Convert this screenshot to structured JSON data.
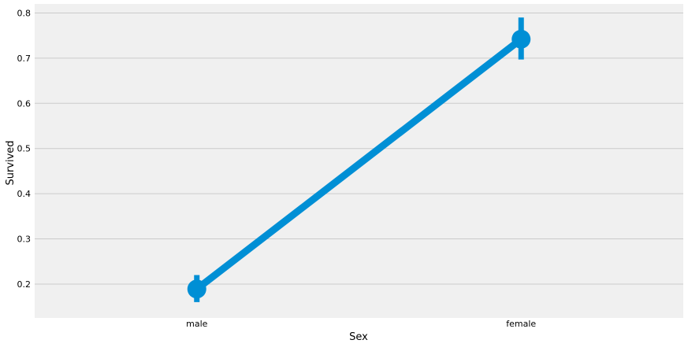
{
  "chart_data": {
    "type": "line",
    "title": "",
    "xlabel": "Sex",
    "ylabel": "Survived",
    "categories": [
      "male",
      "female"
    ],
    "series": [
      {
        "name": "",
        "values": [
          0.189,
          0.742
        ],
        "ci_low": [
          0.16,
          0.697
        ],
        "ci_high": [
          0.22,
          0.79
        ]
      }
    ],
    "ylim": [
      0.125,
      0.82
    ],
    "yticks": [
      0.2,
      0.3,
      0.4,
      0.5,
      0.6,
      0.7,
      0.8
    ],
    "ytick_labels": [
      "0.2",
      "0.3",
      "0.4",
      "0.5",
      "0.6",
      "0.7",
      "0.8"
    ],
    "grid": "horizontal",
    "legend": "none",
    "colors": {
      "series": "#008fd5",
      "plot_background": "#f0f0f0",
      "grid": "#cbcbcb",
      "text": "#000000"
    }
  }
}
